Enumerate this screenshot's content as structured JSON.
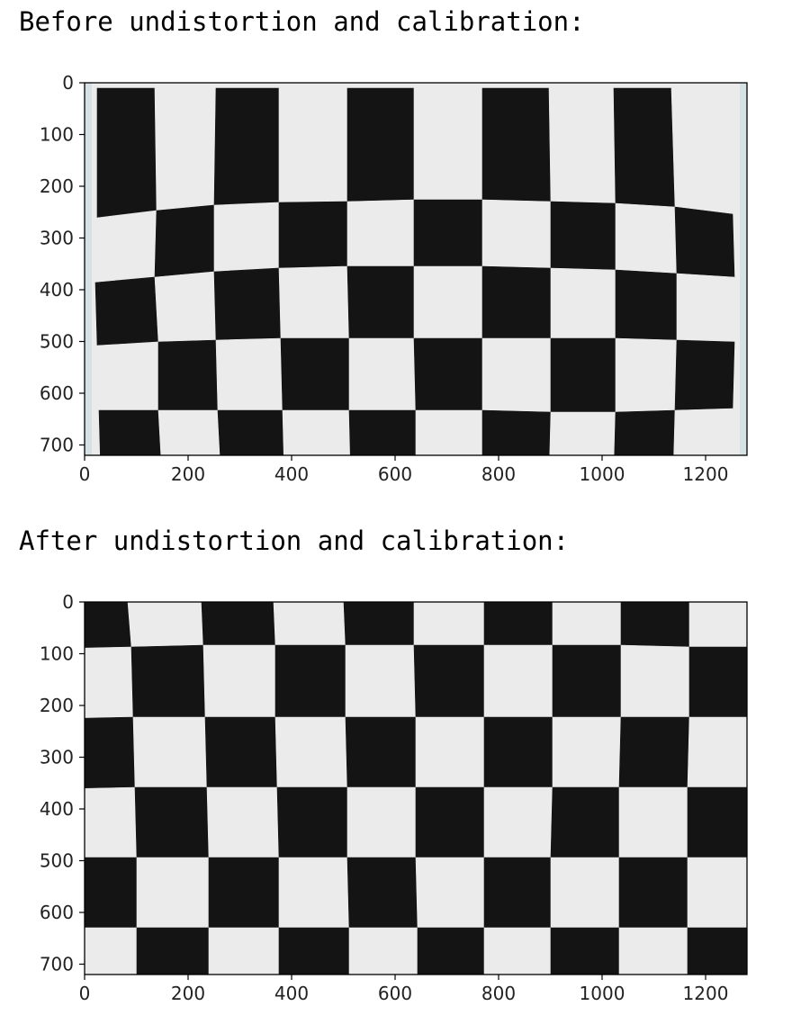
{
  "captions": {
    "before": "Before undistortion and calibration:",
    "after": "After undistortion and calibration:"
  },
  "figures": [
    {
      "id": "before",
      "description_tags": [
        "checkerboard",
        "distorted"
      ],
      "image_width": 1280,
      "image_height": 720,
      "x_ticks": [
        "0",
        "200",
        "400",
        "600",
        "800",
        "1000",
        "1200"
      ],
      "y_ticks": [
        "0",
        "100",
        "200",
        "300",
        "400",
        "500",
        "600",
        "700"
      ],
      "colors": {
        "dark": "#141414",
        "light": "#ebebeb",
        "edge": "#d6e1e6"
      }
    },
    {
      "id": "after",
      "description_tags": [
        "checkerboard",
        "undistorted"
      ],
      "image_width": 1280,
      "image_height": 720,
      "x_ticks": [
        "0",
        "200",
        "400",
        "600",
        "800",
        "1000",
        "1200"
      ],
      "y_ticks": [
        "0",
        "100",
        "200",
        "300",
        "400",
        "500",
        "600",
        "700"
      ],
      "colors": {
        "dark": "#141414",
        "light": "#ebebeb"
      }
    }
  ]
}
